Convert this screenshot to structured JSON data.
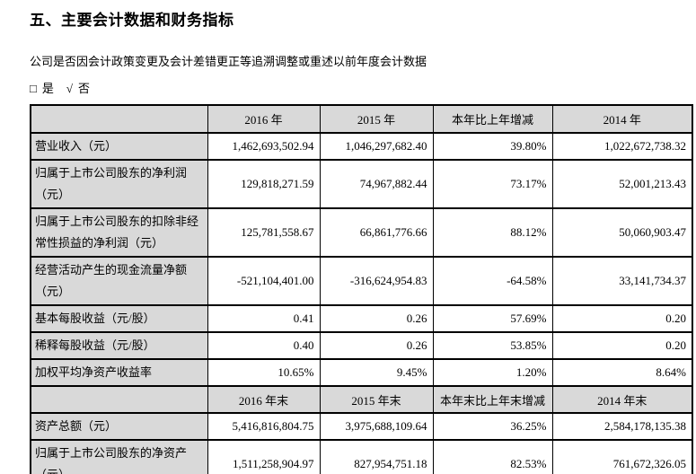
{
  "page": {
    "title": "五、主要会计数据和财务指标",
    "question": "公司是否因会计政策变更及会计差错更正等追溯调整或重述以前年度会计数据",
    "options": [
      {
        "mark": "□",
        "label": "是"
      },
      {
        "mark": "√",
        "label": "否"
      }
    ]
  },
  "colors": {
    "shading_bg": "#d9d9d9",
    "border": "#000000",
    "text": "#000000",
    "page_bg": "#ffffff"
  },
  "table": {
    "header_period": {
      "cols": [
        "2016 年",
        "2015 年",
        "本年比上年增减",
        "2014 年"
      ]
    },
    "rows_period": [
      {
        "label": "营业收入（元）",
        "values": [
          "1,462,693,502.94",
          "1,046,297,682.40",
          "39.80%",
          "1,022,672,738.32"
        ]
      },
      {
        "label": "归属于上市公司股东的净利润（元）",
        "values": [
          "129,818,271.59",
          "74,967,882.44",
          "73.17%",
          "52,001,213.43"
        ]
      },
      {
        "label": "归属于上市公司股东的扣除非经常性损益的净利润（元）",
        "values": [
          "125,781,558.67",
          "66,861,776.66",
          "88.12%",
          "50,060,903.47"
        ]
      },
      {
        "label": "经营活动产生的现金流量净额（元）",
        "values": [
          "-521,104,401.00",
          "-316,624,954.83",
          "-64.58%",
          "33,141,734.37"
        ]
      },
      {
        "label": "基本每股收益（元/股）",
        "values": [
          "0.41",
          "0.26",
          "57.69%",
          "0.20"
        ]
      },
      {
        "label": "稀释每股收益（元/股）",
        "values": [
          "0.40",
          "0.26",
          "53.85%",
          "0.20"
        ]
      },
      {
        "label": "加权平均净资产收益率",
        "values": [
          "10.65%",
          "9.45%",
          "1.20%",
          "8.64%"
        ]
      }
    ],
    "header_eop": {
      "cols": [
        "2016 年末",
        "2015 年末",
        "本年末比上年末增减",
        "2014 年末"
      ]
    },
    "rows_eop": [
      {
        "label": "资产总额（元）",
        "values": [
          "5,416,816,804.75",
          "3,975,688,109.64",
          "36.25%",
          "2,584,178,135.38"
        ]
      },
      {
        "label": "归属于上市公司股东的净资产（元）",
        "values": [
          "1,511,258,904.97",
          "827,954,751.18",
          "82.53%",
          "761,672,326.05"
        ]
      }
    ]
  }
}
